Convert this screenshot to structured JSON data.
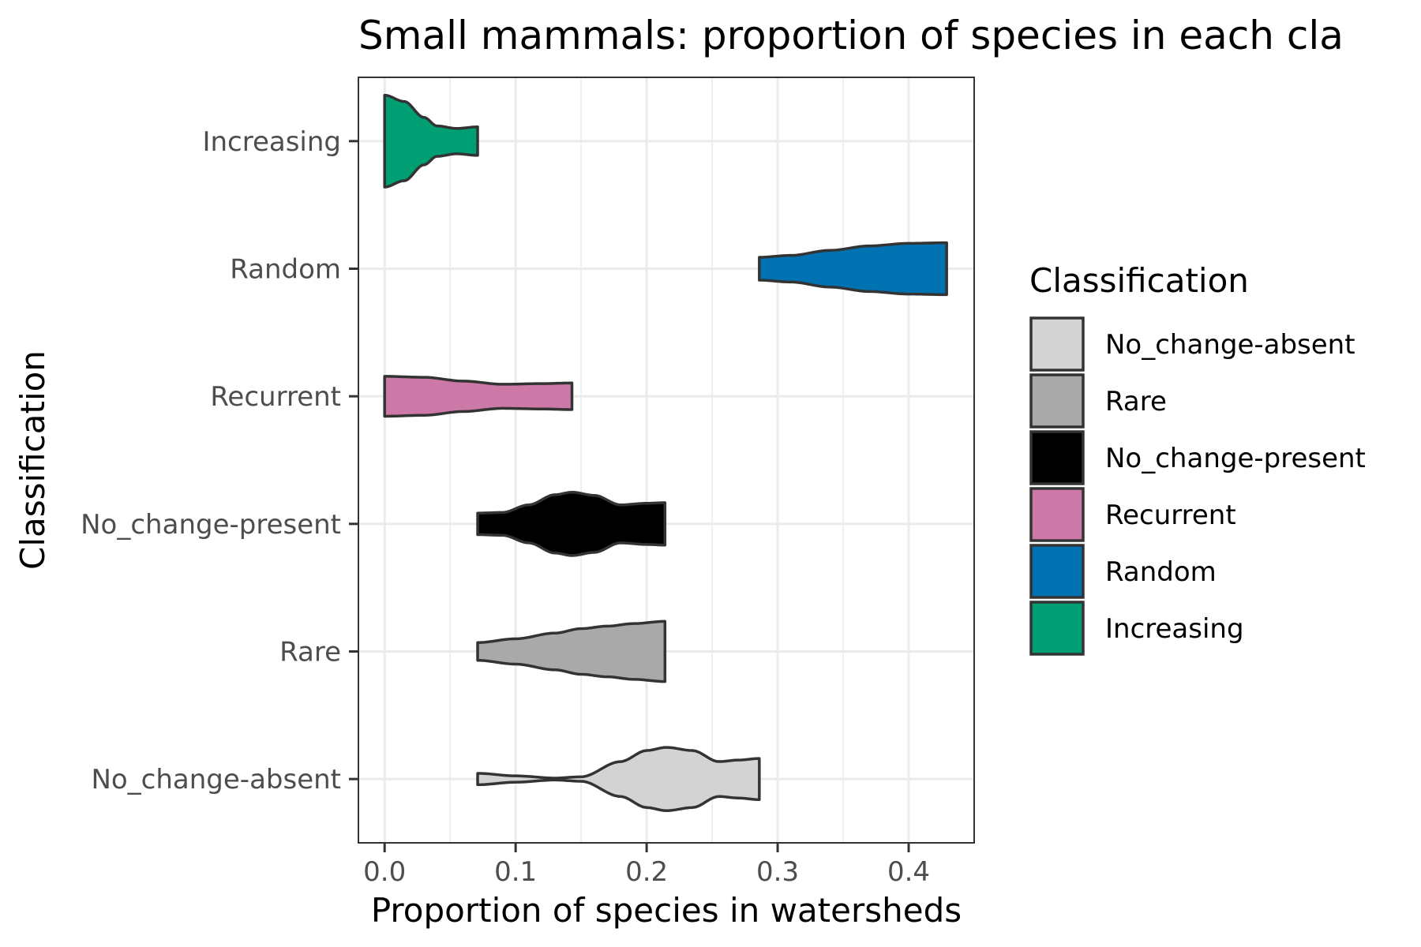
{
  "chart_data": {
    "type": "violin",
    "title": "Small mammals: proportion of species in each cla",
    "xlabel": "Proportion of species in watersheds",
    "ylabel": "Classification",
    "xlim": [
      -0.02,
      0.45
    ],
    "x_ticks": [
      0.0,
      0.1,
      0.2,
      0.3,
      0.4
    ],
    "x_tick_labels": [
      "0.0",
      "0.1",
      "0.2",
      "0.3",
      "0.4"
    ],
    "orientation": "horizontal",
    "grid": true,
    "legend": {
      "title": "Classification",
      "placement": "right",
      "entries": [
        "No_change-absent",
        "Rare",
        "No_change-present",
        "Recurrent",
        "Random",
        "Increasing"
      ]
    },
    "categories": [
      "No_change-absent",
      "Rare",
      "No_change-present",
      "Recurrent",
      "Random",
      "Increasing"
    ],
    "colors": {
      "No_change-absent": "#d3d3d3",
      "Rare": "#a9a9a9",
      "No_change-present": "#000000",
      "Recurrent": "#cc79a7",
      "Random": "#0072b2",
      "Increasing": "#009e73"
    },
    "series": [
      {
        "category": "No_change-absent",
        "min": 0.071,
        "max": 0.286,
        "x": [
          0.071,
          0.1,
          0.13,
          0.15,
          0.18,
          0.2,
          0.215,
          0.235,
          0.255,
          0.27,
          0.286
        ],
        "density": [
          0.18,
          0.1,
          0.03,
          0.07,
          0.55,
          0.9,
          1.0,
          0.9,
          0.55,
          0.6,
          0.65
        ]
      },
      {
        "category": "Rare",
        "min": 0.071,
        "max": 0.214,
        "x": [
          0.071,
          0.1,
          0.13,
          0.15,
          0.17,
          0.19,
          0.214
        ],
        "density": [
          0.28,
          0.4,
          0.58,
          0.72,
          0.8,
          0.88,
          0.95
        ]
      },
      {
        "category": "No_change-present",
        "min": 0.071,
        "max": 0.214,
        "x": [
          0.071,
          0.09,
          0.11,
          0.13,
          0.143,
          0.16,
          0.18,
          0.2,
          0.214
        ],
        "density": [
          0.34,
          0.36,
          0.6,
          0.92,
          1.0,
          0.9,
          0.6,
          0.65,
          0.67
        ]
      },
      {
        "category": "Recurrent",
        "min": 0.0,
        "max": 0.143,
        "x": [
          0.0,
          0.03,
          0.06,
          0.09,
          0.12,
          0.143
        ],
        "density": [
          0.63,
          0.6,
          0.48,
          0.38,
          0.4,
          0.42
        ]
      },
      {
        "category": "Random",
        "min": 0.286,
        "max": 0.429,
        "x": [
          0.286,
          0.31,
          0.34,
          0.37,
          0.4,
          0.429
        ],
        "density": [
          0.36,
          0.42,
          0.58,
          0.72,
          0.8,
          0.82
        ]
      },
      {
        "category": "Increasing",
        "min": 0.0,
        "max": 0.071,
        "x": [
          0.0,
          0.015,
          0.03,
          0.04,
          0.055,
          0.071
        ],
        "density": [
          1.45,
          1.25,
          0.75,
          0.48,
          0.4,
          0.45
        ]
      }
    ]
  }
}
